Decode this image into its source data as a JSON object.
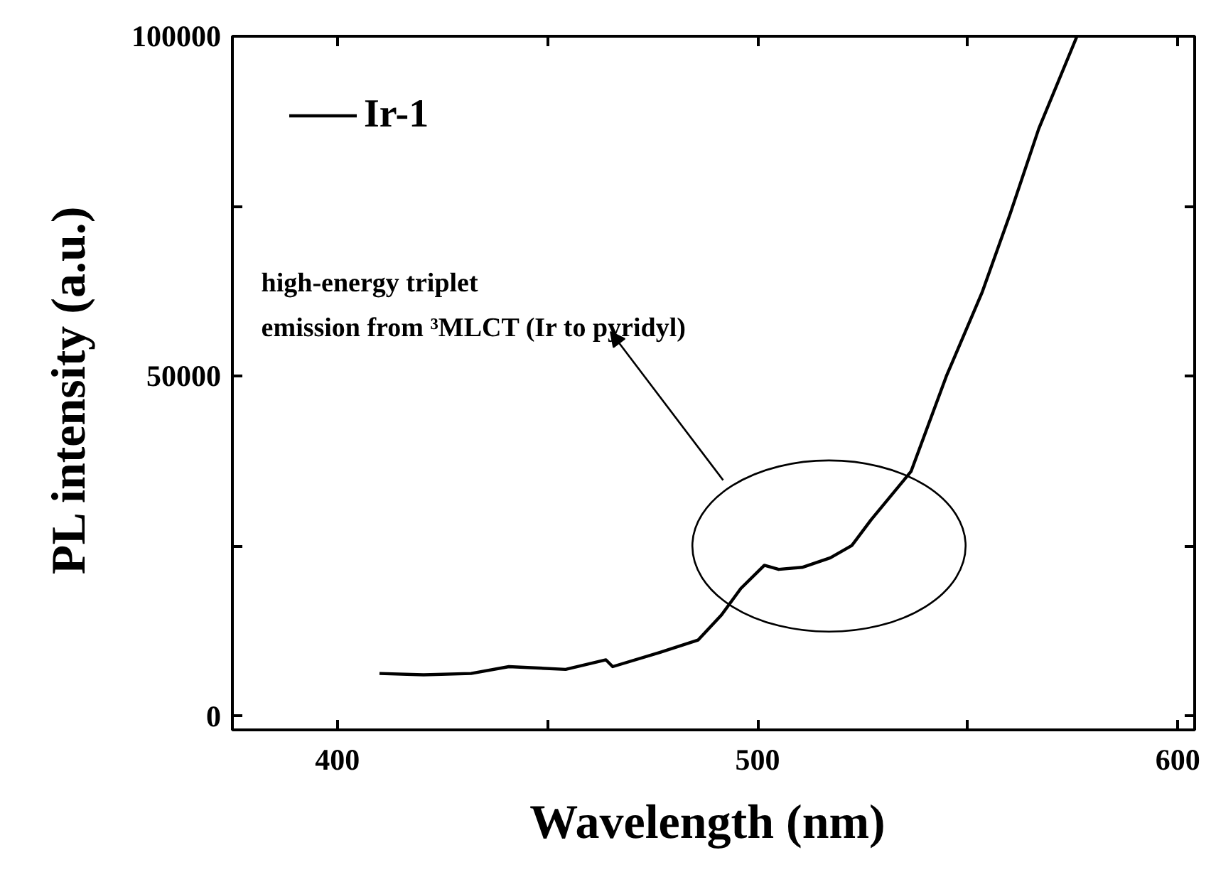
{
  "chart_data": {
    "type": "line",
    "xlabel": "Wavelength  (nm)",
    "ylabel": "PL intensity  (a.u.)",
    "series": [
      {
        "name": "Ir-1",
        "color": "#000000",
        "x": [
          410,
          420.5,
          431.8,
          440.8,
          454.3,
          463.9,
          465.5,
          476.8,
          485.8,
          491.4,
          496,
          501.6,
          505,
          510.6,
          517.3,
          522.4,
          527,
          536.5,
          544.9,
          553.4,
          560.1,
          566.9,
          576
        ],
        "values": [
          6300,
          6100,
          6300,
          7300,
          6900,
          8300,
          7300,
          9400,
          11200,
          14900,
          18800,
          22200,
          21600,
          21900,
          23300,
          25100,
          28900,
          36000,
          50000,
          62300,
          73900,
          86400,
          100000
        ]
      }
    ],
    "xlim": [
      375,
      604
    ],
    "ylim": [
      -2000,
      100000
    ],
    "xticks": [
      400,
      {
        "value": 450,
        "label": null
      },
      500,
      {
        "value": 550,
        "label": null
      },
      600
    ],
    "yticks": [
      0,
      {
        "value": 25000,
        "label": null
      },
      50000,
      {
        "value": 75000,
        "label": null
      },
      100000
    ],
    "annotations": [
      "high-energy triplet\nemission from ³MLCT (Ir to pyridyl)"
    ],
    "legend": "top left",
    "grid": false,
    "marker": "none",
    "line_style": "solid"
  }
}
